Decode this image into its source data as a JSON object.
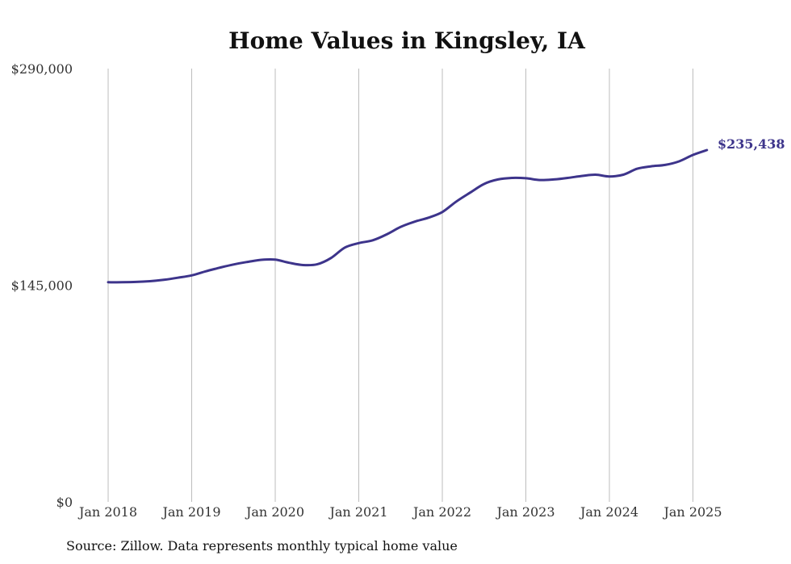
{
  "chart_data": {
    "type": "line",
    "title": "Home Values in Kingsley, IA",
    "source": "Source: Zillow. Data represents monthly typical home value",
    "line_color": "#3d348b",
    "grid": "vertical",
    "y_ticks": [
      {
        "value": 290000,
        "label": "$290,000"
      },
      {
        "value": 145000,
        "label": "$145,000"
      },
      {
        "value": 0,
        "label": "$0"
      }
    ],
    "ylim": [
      0,
      290000
    ],
    "x_ticks": [
      {
        "value": "2018-01",
        "label": "Jan 2018"
      },
      {
        "value": "2019-01",
        "label": "Jan 2019"
      },
      {
        "value": "2020-01",
        "label": "Jan 2020"
      },
      {
        "value": "2021-01",
        "label": "Jan 2021"
      },
      {
        "value": "2022-01",
        "label": "Jan 2022"
      },
      {
        "value": "2023-01",
        "label": "Jan 2023"
      },
      {
        "value": "2024-01",
        "label": "Jan 2024"
      },
      {
        "value": "2025-01",
        "label": "Jan 2025"
      }
    ],
    "end_label": "$235,438",
    "series": [
      {
        "points": [
          [
            "2018-01",
            147000
          ],
          [
            "2018-03",
            147000
          ],
          [
            "2018-05",
            147200
          ],
          [
            "2018-07",
            147700
          ],
          [
            "2018-09",
            148600
          ],
          [
            "2018-11",
            150000
          ],
          [
            "2019-01",
            151600
          ],
          [
            "2019-03",
            154300
          ],
          [
            "2019-05",
            156700
          ],
          [
            "2019-07",
            158900
          ],
          [
            "2019-09",
            160600
          ],
          [
            "2019-11",
            162000
          ],
          [
            "2020-01",
            162100
          ],
          [
            "2020-03",
            160000
          ],
          [
            "2020-05",
            158500
          ],
          [
            "2020-07",
            159000
          ],
          [
            "2020-09",
            163200
          ],
          [
            "2020-11",
            170200
          ],
          [
            "2021-01",
            173200
          ],
          [
            "2021-03",
            175100
          ],
          [
            "2021-05",
            179000
          ],
          [
            "2021-07",
            184000
          ],
          [
            "2021-09",
            187500
          ],
          [
            "2021-11",
            190200
          ],
          [
            "2022-01",
            194000
          ],
          [
            "2022-03",
            201000
          ],
          [
            "2022-05",
            207000
          ],
          [
            "2022-07",
            212800
          ],
          [
            "2022-09",
            215800
          ],
          [
            "2022-11",
            216800
          ],
          [
            "2023-01",
            216600
          ],
          [
            "2023-03",
            215400
          ],
          [
            "2023-05",
            215800
          ],
          [
            "2023-07",
            216800
          ],
          [
            "2023-09",
            218100
          ],
          [
            "2023-11",
            219000
          ],
          [
            "2024-01",
            217800
          ],
          [
            "2024-03",
            219000
          ],
          [
            "2024-05",
            223000
          ],
          [
            "2024-07",
            224600
          ],
          [
            "2024-09",
            225500
          ],
          [
            "2024-11",
            227900
          ],
          [
            "2025-01",
            232200
          ],
          [
            "2025-03",
            235438
          ]
        ]
      }
    ]
  }
}
